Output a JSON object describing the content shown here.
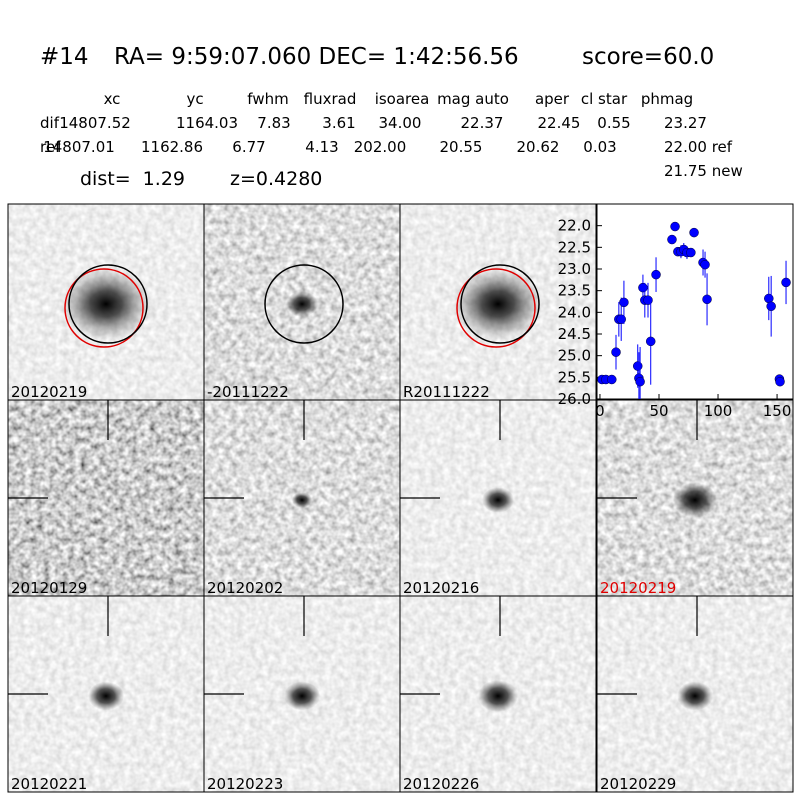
{
  "header": {
    "id": "#14",
    "coords": "RA= 9:59:07.060 DEC= 1:42:56.56",
    "score": "score=60.0",
    "dist": "dist=  1.29",
    "z": "z=0.4280"
  },
  "table": {
    "columns": [
      "xc",
      "yc",
      "fwhm",
      "fluxrad",
      "isoarea",
      "mag auto",
      "aper",
      "cl star",
      "phmag"
    ],
    "rows": [
      [
        "dif",
        "14807.52",
        "1164.03",
        "7.83",
        "3.61",
        "34.00",
        "22.37",
        "22.45",
        "0.55",
        "23.27"
      ],
      [
        "ref",
        "14807.01",
        "1162.86",
        "6.77",
        "4.13",
        "202.00",
        "20.55",
        "20.62",
        "0.03",
        "22.00 ref"
      ]
    ],
    "extra": "21.75 new"
  },
  "panels": [
    "20120219",
    "-20111222",
    "R20111222",
    "20120129",
    "20120202",
    "20120216",
    "20120219",
    "20120221",
    "20120223",
    "20120226",
    "20120229"
  ],
  "chart_data": {
    "type": "errorbar",
    "color": "#0000ff",
    "x": [
      1.7,
      5,
      10,
      13.6,
      16,
      18,
      20.3,
      32,
      33,
      34,
      36.4,
      38,
      40.7,
      43,
      47.5,
      61,
      63.6,
      66,
      68.6,
      71,
      73.7,
      77,
      79.7,
      87.3,
      89,
      90.7,
      143,
      145,
      152,
      152.5,
      157.6
    ],
    "values": [
      25.55,
      25.55,
      25.55,
      24.92,
      24.16,
      24.16,
      23.77,
      25.24,
      25.52,
      25.6,
      23.43,
      23.72,
      23.72,
      24.67,
      23.13,
      22.32,
      22.02,
      22.6,
      22.6,
      22.55,
      22.62,
      22.62,
      22.16,
      22.85,
      22.9,
      23.7,
      23.68,
      23.86,
      25.54,
      25.6,
      23.31
    ],
    "errors": [
      0.1,
      0.1,
      0.1,
      0.4,
      0.4,
      0.5,
      0.5,
      0.5,
      0.6,
      0.8,
      0.3,
      0.4,
      0.4,
      1.0,
      0.4,
      0.1,
      0.1,
      0.1,
      0.15,
      0.15,
      0.15,
      0.1,
      0.1,
      0.3,
      0.3,
      0.6,
      0.5,
      0.7,
      0.1,
      0.1,
      0.5
    ],
    "xlim": [
      -2.5,
      163.5
    ],
    "ylim": [
      26.0,
      21.5
    ],
    "xticks": [
      0,
      50,
      100,
      150
    ],
    "yticks": [
      {
        "value": 22,
        "label": "22.0"
      },
      {
        "value": 22.5,
        "label": "22.5"
      },
      {
        "value": 23,
        "label": "23.0"
      },
      {
        "value": 23.5,
        "label": "23.5"
      },
      {
        "value": 24,
        "label": "24.0"
      },
      {
        "value": 24.5,
        "label": "24.5"
      },
      {
        "value": 25,
        "label": "25.0"
      },
      {
        "value": 25.5,
        "label": "25.5"
      },
      {
        "value": 26,
        "label": "26.0"
      }
    ]
  }
}
